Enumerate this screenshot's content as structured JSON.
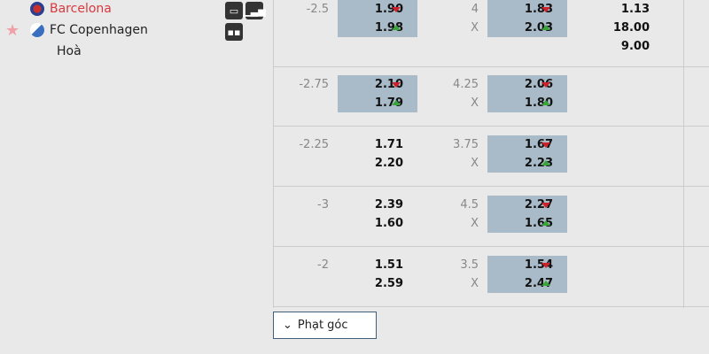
{
  "teams": {
    "home": "Barcelona",
    "away": "FC Copenhagen",
    "draw": "Hoà"
  },
  "icons": [
    "monitor-icon",
    "stats-icon",
    "lineup-icon",
    "star-icon"
  ],
  "colors": {
    "home": "#d9383f",
    "highlight": "#a9bbc8",
    "down": "#d0202a",
    "up": "#3aa43a"
  },
  "rows": [
    {
      "hcp": "-2.5",
      "h1": "1.90",
      "h1dir": "down",
      "h2": "1.98",
      "h2dir": "up",
      "hhl": true,
      "ou": "4",
      "x": "X",
      "o1": "1.83",
      "o1dir": "down",
      "o2": "2.03",
      "o2dir": "up",
      "ohl": true,
      "m1": "1.13",
      "m2": "18.00",
      "m3": "9.00"
    },
    {
      "hcp": "-2.75",
      "h1": "2.10",
      "h1dir": "down",
      "h2": "1.79",
      "h2dir": "up",
      "hhl": true,
      "ou": "4.25",
      "x": "X",
      "o1": "2.06",
      "o1dir": "down",
      "o2": "1.80",
      "o2dir": "up",
      "ohl": true
    },
    {
      "hcp": "-2.25",
      "h1": "1.71",
      "h2": "2.20",
      "hhl": false,
      "ou": "3.75",
      "x": "X",
      "o1": "1.67",
      "o1dir": "down",
      "o2": "2.23",
      "o2dir": "up",
      "ohl": true
    },
    {
      "hcp": "-3",
      "h1": "2.39",
      "h2": "1.60",
      "hhl": false,
      "ou": "4.5",
      "x": "X",
      "o1": "2.27",
      "o1dir": "down",
      "o2": "1.65",
      "o2dir": "up",
      "ohl": true
    },
    {
      "hcp": "-2",
      "h1": "1.51",
      "h2": "2.59",
      "hhl": false,
      "ou": "3.5",
      "x": "X",
      "o1": "1.54",
      "o1dir": "down",
      "o2": "2.47",
      "o2dir": "up",
      "ohl": true
    }
  ],
  "corner_button": "Phạt góc"
}
